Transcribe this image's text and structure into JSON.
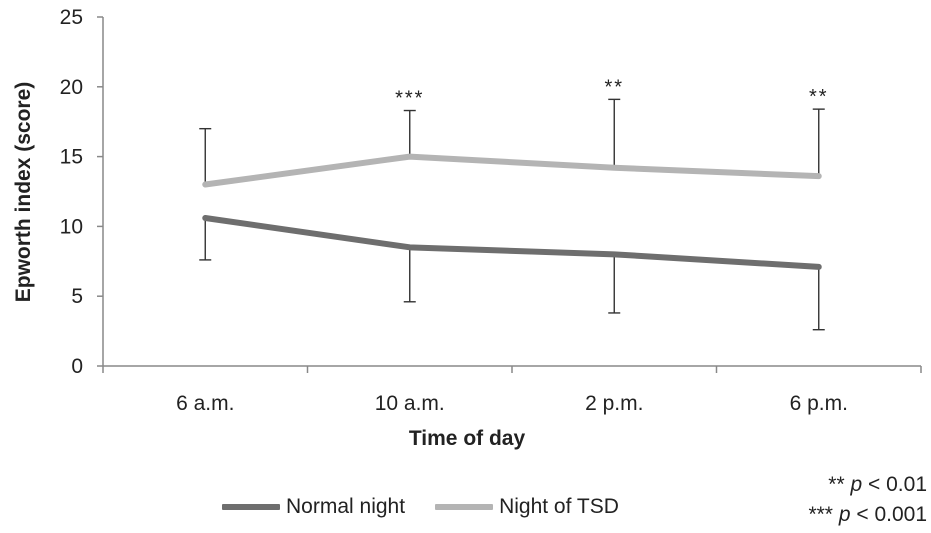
{
  "chart_data": {
    "type": "line",
    "xlabel": "Time of day",
    "ylabel": "Epworth index (score)",
    "categories": [
      "6 a.m.",
      "10 a.m.",
      "2 p.m.",
      "6 p.m."
    ],
    "ylim": [
      0,
      25
    ],
    "yticks": [
      0,
      5,
      10,
      15,
      20,
      25
    ],
    "grid": false,
    "legend_position": "bottom",
    "series": [
      {
        "name": "Normal night",
        "color": "#6e6e6e",
        "values": [
          10.6,
          8.5,
          8.0,
          7.1
        ],
        "error_lower": [
          3.0,
          3.9,
          4.2,
          4.5
        ],
        "error_direction": "down"
      },
      {
        "name": "Night of TSD",
        "color": "#b4b4b4",
        "values": [
          13.0,
          15.0,
          14.2,
          13.6
        ],
        "error_upper": [
          4.0,
          3.3,
          4.9,
          4.8
        ],
        "error_direction": "up"
      }
    ],
    "significance": [
      "",
      "***",
      "**",
      "**"
    ],
    "notes": [
      {
        "stars": "**",
        "p": "p",
        "text": " < 0.01"
      },
      {
        "stars": "***",
        "p": "p",
        "text": " < 0.001"
      }
    ]
  }
}
